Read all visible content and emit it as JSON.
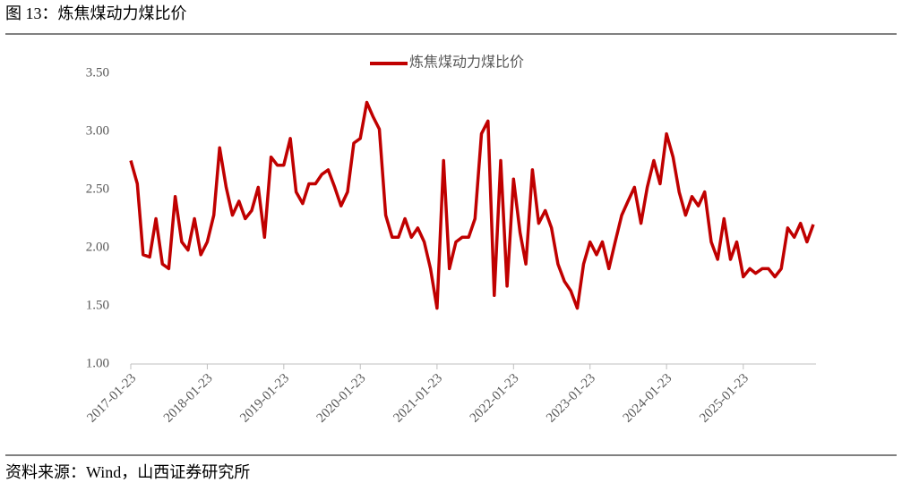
{
  "chart_data": {
    "type": "line",
    "title": "图 13：炼焦煤动力煤比价",
    "source": "资料来源：Wind，山西证券研究所",
    "legend": "top",
    "x": [
      "2017-01-23",
      "2017-02-23",
      "2017-03-23",
      "2017-04-23",
      "2017-05-23",
      "2017-06-23",
      "2017-07-23",
      "2017-08-23",
      "2017-09-23",
      "2017-10-23",
      "2017-11-23",
      "2017-12-23",
      "2018-01-23",
      "2018-02-23",
      "2018-03-23",
      "2018-04-23",
      "2018-05-23",
      "2018-06-23",
      "2018-07-23",
      "2018-08-23",
      "2018-09-23",
      "2018-10-23",
      "2018-11-23",
      "2018-12-23",
      "2019-01-23",
      "2019-02-23",
      "2019-03-23",
      "2019-04-23",
      "2019-05-23",
      "2019-06-23",
      "2019-07-23",
      "2019-08-23",
      "2019-09-23",
      "2019-10-23",
      "2019-11-23",
      "2019-12-23",
      "2020-01-23",
      "2020-02-23",
      "2020-03-23",
      "2020-04-23",
      "2020-05-23",
      "2020-06-23",
      "2020-07-23",
      "2020-08-23",
      "2020-09-23",
      "2020-10-23",
      "2020-11-23",
      "2020-12-23",
      "2021-01-23",
      "2021-02-23",
      "2021-03-23",
      "2021-04-23",
      "2021-05-23",
      "2021-06-23",
      "2021-07-23",
      "2021-08-23",
      "2021-09-23",
      "2021-10-23",
      "2021-11-23",
      "2021-12-23",
      "2022-01-23",
      "2022-02-23",
      "2022-03-23",
      "2022-04-23",
      "2022-05-23",
      "2022-06-23",
      "2022-07-23",
      "2022-08-23",
      "2022-09-23",
      "2022-10-23",
      "2022-11-23",
      "2022-12-23",
      "2023-01-23",
      "2023-02-23",
      "2023-03-23",
      "2023-04-23",
      "2023-05-23",
      "2023-06-23",
      "2023-07-23",
      "2023-08-23",
      "2023-09-23",
      "2023-10-23",
      "2023-11-23",
      "2023-12-23",
      "2024-01-23",
      "2024-02-23",
      "2024-03-23",
      "2024-04-23",
      "2024-05-23",
      "2024-06-23",
      "2024-07-23",
      "2024-08-23",
      "2024-09-23",
      "2024-10-23",
      "2024-11-23",
      "2024-12-23",
      "2025-01-23",
      "2025-02-23",
      "2025-03-23",
      "2025-04-23",
      "2025-05-23",
      "2025-06-23",
      "2025-07-23",
      "2025-08-23",
      "2025-09-23",
      "2025-10-23",
      "2025-11-23",
      "2025-12-23"
    ],
    "series": [
      {
        "name": "炼焦煤动力煤比价",
        "color": "#c00000",
        "values": [
          2.75,
          2.55,
          1.94,
          1.92,
          2.25,
          1.86,
          1.82,
          2.44,
          2.05,
          1.98,
          2.25,
          1.94,
          2.05,
          2.28,
          2.86,
          2.52,
          2.28,
          2.4,
          2.25,
          2.32,
          2.52,
          2.09,
          2.78,
          2.71,
          2.71,
          2.94,
          2.48,
          2.38,
          2.55,
          2.55,
          2.63,
          2.67,
          2.52,
          2.36,
          2.48,
          2.9,
          2.94,
          3.25,
          3.13,
          3.02,
          2.28,
          2.09,
          2.09,
          2.25,
          2.09,
          2.17,
          2.05,
          1.82,
          1.48,
          2.75,
          1.82,
          2.05,
          2.09,
          2.09,
          2.25,
          2.98,
          3.09,
          1.59,
          2.75,
          1.67,
          2.59,
          2.13,
          1.86,
          2.67,
          2.21,
          2.32,
          2.17,
          1.86,
          1.71,
          1.63,
          1.48,
          1.86,
          2.05,
          1.94,
          2.05,
          1.82,
          2.05,
          2.28,
          2.4,
          2.52,
          2.21,
          2.52,
          2.75,
          2.55,
          2.98,
          2.78,
          2.48,
          2.28,
          2.44,
          2.36,
          2.48,
          2.05,
          1.9,
          2.25,
          1.9,
          2.05,
          1.75,
          1.82,
          1.78,
          1.82,
          1.82,
          1.75,
          1.82,
          2.17,
          2.09,
          2.21,
          2.05,
          2.2
        ]
      }
    ],
    "xlim": [
      "2017-01-23",
      "2026-01-05"
    ],
    "xticks": [
      "2017-01-23",
      "2018-01-23",
      "2019-01-23",
      "2020-01-23",
      "2021-01-23",
      "2022-01-23",
      "2023-01-23",
      "2024-01-23",
      "2025-01-23"
    ],
    "ylim": [
      1,
      3.5
    ],
    "yticks": [
      {
        "value": 1,
        "label": "1.00"
      },
      {
        "value": 1.5,
        "label": "1.50"
      },
      {
        "value": 2,
        "label": "2.00"
      },
      {
        "value": 2.5,
        "label": "2.50"
      },
      {
        "value": 3,
        "label": "3.00"
      },
      {
        "value": 3.5,
        "label": "3.50"
      }
    ],
    "grid": false
  }
}
